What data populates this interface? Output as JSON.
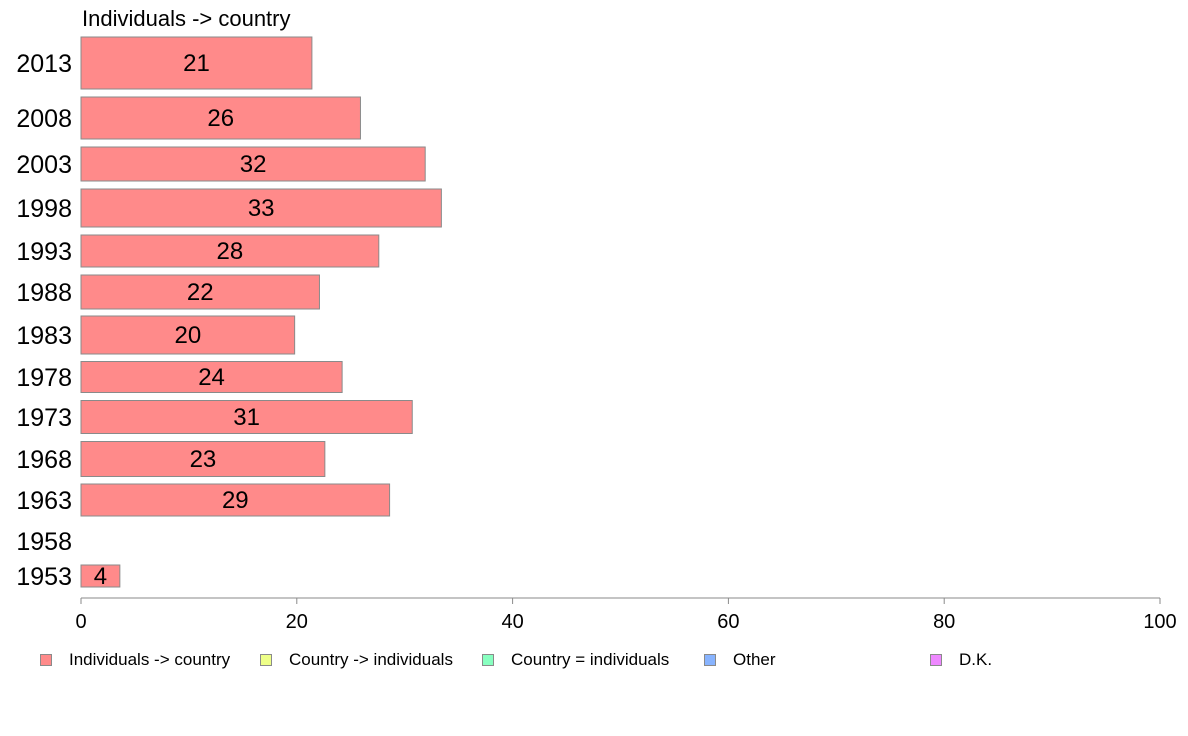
{
  "chart_data": {
    "type": "bar",
    "orientation": "horizontal",
    "series_title": "Individuals -> country",
    "categories": [
      "2013",
      "2008",
      "2003",
      "1998",
      "1993",
      "1988",
      "1983",
      "1978",
      "1973",
      "1968",
      "1963",
      "1958",
      "1953"
    ],
    "values": [
      21.4,
      25.9,
      31.9,
      33.4,
      27.6,
      22.1,
      19.8,
      24.2,
      30.7,
      22.6,
      28.6,
      null,
      3.6
    ],
    "data_labels": [
      "21",
      "26",
      "32",
      "33",
      "28",
      "22",
      "20",
      "24",
      "31",
      "23",
      "29",
      "",
      "4"
    ],
    "xlim": [
      0,
      100
    ],
    "xticks": [
      0,
      20,
      40,
      60,
      80,
      100
    ],
    "bar_color": "#ff8a8a",
    "bar_stroke": "#8a8a8a",
    "grid": false,
    "legend_position": "bottom",
    "legend": [
      {
        "label": "Individuals -> country",
        "color": "#ff8a8a"
      },
      {
        "label": "Country -> individuals",
        "color": "#eeff88"
      },
      {
        "label": "Country = individuals",
        "color": "#88ffc0"
      },
      {
        "label": "Other",
        "color": "#88b4ff"
      },
      {
        "label": "D.K.",
        "color": "#ee88ff"
      }
    ]
  }
}
